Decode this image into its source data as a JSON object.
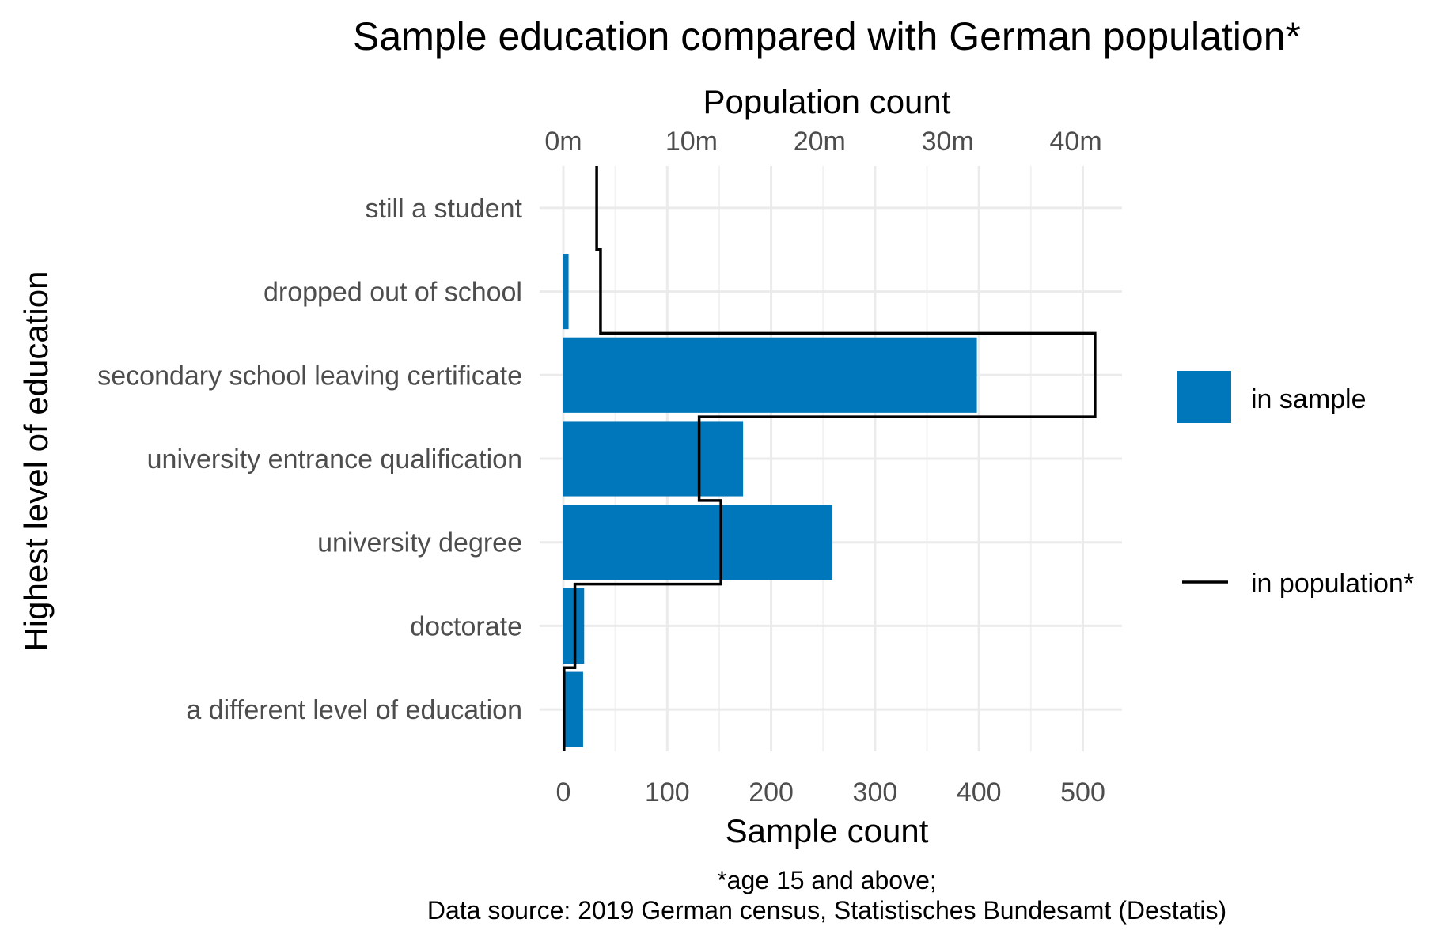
{
  "chart_data": {
    "type": "bar",
    "title": "Sample education compared with German population*",
    "xlabel": "Sample count",
    "x2label": "Population count",
    "ylabel": "Highest level of education",
    "categories": [
      "still a student",
      "dropped out of school",
      "secondary school leaving certificate",
      "university entrance qualification",
      "university degree",
      "doctorate",
      "a different level of education"
    ],
    "series": [
      {
        "name": "in sample",
        "kind": "bar",
        "color": "#0077BB",
        "values": [
          0,
          5,
          398,
          173,
          259,
          20,
          19
        ]
      },
      {
        "name": "in population*",
        "kind": "step",
        "color": "#000000",
        "values": [
          2.6,
          2.9,
          41.5,
          10.6,
          12.3,
          0.9,
          0.05
        ]
      }
    ],
    "xlim": [
      0,
      540
    ],
    "xticks": [
      0,
      100,
      200,
      300,
      400,
      500
    ],
    "x2ticks": [
      "0m",
      "10m",
      "20m",
      "30m",
      "40m"
    ],
    "x2tick_values": [
      0,
      10,
      20,
      30,
      40
    ],
    "x2_scale_millions_per_unit": 0.0811,
    "legend_position": "right",
    "grid": true,
    "caption": [
      "*age 15 and above;",
      "Data source: 2019 German census, Statistisches Bundesamt (Destatis)"
    ]
  }
}
